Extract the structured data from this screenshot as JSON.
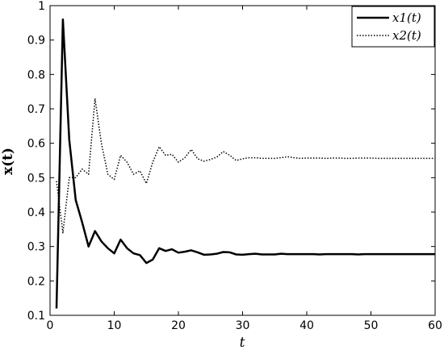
{
  "chart_data": {
    "type": "line",
    "xlabel": "t",
    "ylabel": "x(t)",
    "xlim": [
      0,
      60
    ],
    "ylim": [
      0.1,
      1
    ],
    "xticks": [
      0,
      10,
      20,
      30,
      40,
      50,
      60
    ],
    "yticks": [
      0.1,
      0.2,
      0.3,
      0.4,
      0.5,
      0.6,
      0.7,
      0.8,
      0.9,
      1
    ],
    "xtick_labels": [
      "0",
      "10",
      "20",
      "30",
      "40",
      "50",
      "60"
    ],
    "ytick_labels": [
      "0.1",
      "0.2",
      "0.3",
      "0.4",
      "0.5",
      "0.6",
      "0.7",
      "0.8",
      "0.9",
      "1"
    ],
    "grid": false,
    "legend_position": "top-right",
    "series": [
      {
        "name": "x1(t)",
        "line_style": "solid",
        "color": "#000000",
        "x": [
          1,
          2,
          3,
          4,
          5,
          6,
          7,
          8,
          9,
          10,
          11,
          12,
          13,
          14,
          15,
          16,
          17,
          18,
          19,
          20,
          21,
          22,
          23,
          24,
          25,
          26,
          27,
          28,
          29,
          30,
          31,
          32,
          33,
          34,
          35,
          36,
          37,
          38,
          39,
          40,
          41,
          42,
          43,
          44,
          45,
          46,
          47,
          48,
          49,
          50,
          51,
          52,
          53,
          54,
          55,
          56,
          57,
          58,
          59,
          60
        ],
        "y": [
          0.12,
          0.96,
          0.61,
          0.435,
          0.37,
          0.3,
          0.345,
          0.315,
          0.295,
          0.28,
          0.32,
          0.295,
          0.28,
          0.275,
          0.252,
          0.262,
          0.295,
          0.287,
          0.292,
          0.282,
          0.285,
          0.289,
          0.283,
          0.276,
          0.277,
          0.279,
          0.284,
          0.283,
          0.277,
          0.276,
          0.278,
          0.279,
          0.277,
          0.277,
          0.277,
          0.279,
          0.278,
          0.278,
          0.278,
          0.278,
          0.278,
          0.277,
          0.278,
          0.278,
          0.278,
          0.278,
          0.278,
          0.277,
          0.278,
          0.278,
          0.278,
          0.278,
          0.278,
          0.278,
          0.278,
          0.278,
          0.278,
          0.278,
          0.278,
          0.278
        ]
      },
      {
        "name": "x2(t)",
        "line_style": "dotted",
        "color": "#000000",
        "x": [
          1,
          2,
          3,
          4,
          5,
          6,
          7,
          8,
          9,
          10,
          11,
          12,
          13,
          14,
          15,
          16,
          17,
          18,
          19,
          20,
          21,
          22,
          23,
          24,
          25,
          26,
          27,
          28,
          29,
          30,
          31,
          32,
          33,
          34,
          35,
          36,
          37,
          38,
          39,
          40,
          41,
          42,
          43,
          44,
          45,
          46,
          47,
          48,
          49,
          50,
          51,
          52,
          53,
          54,
          55,
          56,
          57,
          58,
          59,
          60
        ],
        "y": [
          0.49,
          0.34,
          0.5,
          0.5,
          0.525,
          0.51,
          0.73,
          0.6,
          0.51,
          0.495,
          0.565,
          0.545,
          0.51,
          0.52,
          0.483,
          0.545,
          0.59,
          0.565,
          0.568,
          0.545,
          0.558,
          0.582,
          0.555,
          0.548,
          0.553,
          0.56,
          0.576,
          0.565,
          0.55,
          0.555,
          0.558,
          0.558,
          0.556,
          0.556,
          0.556,
          0.558,
          0.561,
          0.558,
          0.556,
          0.557,
          0.557,
          0.557,
          0.556,
          0.557,
          0.557,
          0.556,
          0.556,
          0.557,
          0.557,
          0.557,
          0.556,
          0.556,
          0.556,
          0.556,
          0.556,
          0.556,
          0.556,
          0.556,
          0.556,
          0.556
        ]
      }
    ]
  }
}
